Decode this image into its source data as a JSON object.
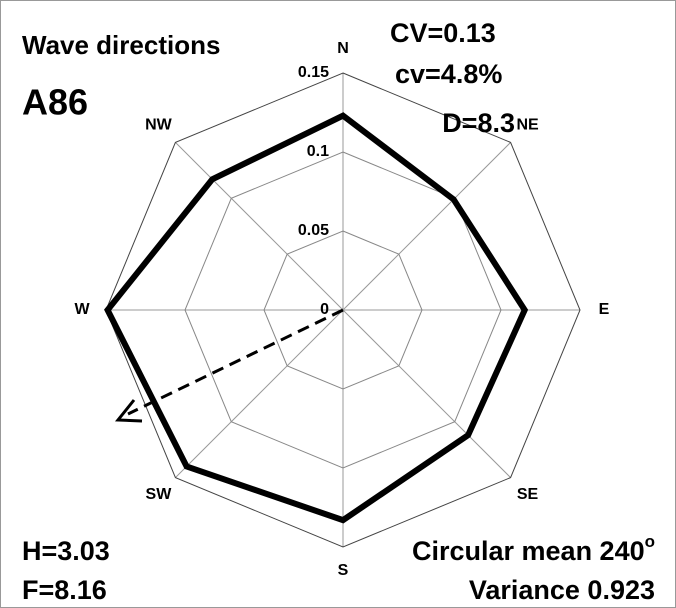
{
  "chart_data": {
    "type": "radar",
    "title": "Wave directions",
    "subtitle": "A86",
    "categories": [
      "N",
      "NE",
      "E",
      "SE",
      "S",
      "SW",
      "W",
      "NW"
    ],
    "values": [
      0.123,
      0.099,
      0.115,
      0.112,
      0.133,
      0.14,
      0.149,
      0.117
    ],
    "color": "#000000",
    "ylim": [
      0,
      0.15
    ],
    "yticks": [
      0,
      0.05,
      0.1,
      0.15
    ],
    "grid": true,
    "annotations": {
      "cv_upper": "CV=0.13",
      "cv_lower": "cv=4.8%",
      "d": "D=8.3",
      "h": "H=3.03",
      "f": "F=8.16",
      "circular_mean": {
        "text": "Circular mean 240",
        "superscript": "o"
      },
      "variance": "Variance 0.923"
    }
  }
}
